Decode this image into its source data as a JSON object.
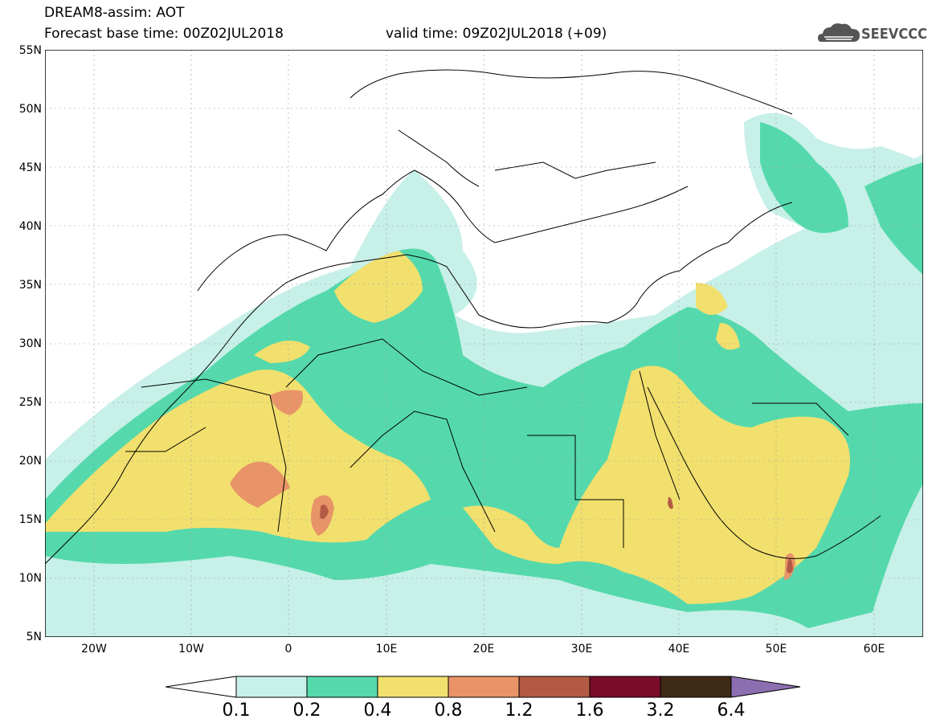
{
  "header": {
    "title": "DREAM8-assim: AOT",
    "base_time": "Forecast base time: 00Z02JUL2018",
    "valid_time": "valid time: 09Z02JUL2018 (+09)",
    "logo_text": "SEEVCCC"
  },
  "map": {
    "variable": "AOT",
    "lat_labels": [
      "55N",
      "50N",
      "45N",
      "40N",
      "35N",
      "30N",
      "25N",
      "20N",
      "15N",
      "10N",
      "5N"
    ],
    "lon_labels": [
      "20W",
      "10W",
      "0",
      "10E",
      "20E",
      "30E",
      "40E",
      "50E",
      "60E"
    ],
    "lat_range": [
      5,
      55
    ],
    "lon_range": [
      -25,
      65
    ]
  },
  "legend": {
    "levels": [
      "0.1",
      "0.2",
      "0.4",
      "0.8",
      "1.2",
      "1.6",
      "3.2",
      "6.4"
    ],
    "colors": [
      "#ffffff",
      "#c7f0e8",
      "#55d9ac",
      "#f2e06e",
      "#e89468",
      "#b35a45",
      "#7a0c2a",
      "#3f2a18",
      "#8c6fb0"
    ]
  },
  "colors": {
    "c01": "#c7f0e8",
    "c02": "#55d9ac",
    "c04": "#f2e06e",
    "c08": "#e89468",
    "c12": "#b35a45",
    "border": "#000000"
  }
}
